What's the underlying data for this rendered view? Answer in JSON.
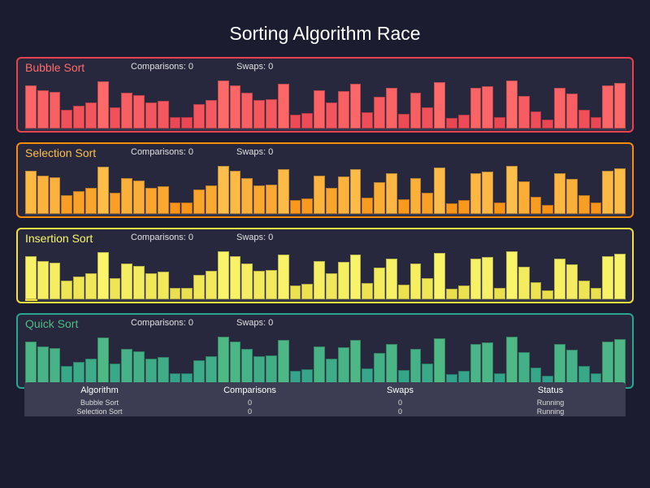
{
  "title": "Sorting Algorithm Race",
  "comparisons_label": "Comparisons: ",
  "swaps_label": "Swaps: ",
  "values": [
    88,
    78,
    75,
    39,
    46,
    53,
    96,
    43,
    73,
    68,
    53,
    57,
    23,
    23,
    50,
    59,
    98,
    88,
    74,
    58,
    60,
    91,
    28,
    31,
    79,
    53,
    76,
    92,
    34,
    65,
    84,
    30,
    73,
    43,
    95,
    21,
    28,
    84,
    87,
    23,
    98,
    67,
    35,
    18,
    83,
    72,
    39,
    23,
    88,
    93
  ],
  "algorithms": [
    {
      "name": "Bubble Sort",
      "comparisons": 0,
      "swaps": 0,
      "progress": 0,
      "border": "#e8414f",
      "light": "#ff6b6b",
      "dark": "#e53e4f",
      "label_color": "#ff6b6b"
    },
    {
      "name": "Selection Sort",
      "comparisons": 0,
      "swaps": 0,
      "progress": 0,
      "border": "#f78b0a",
      "light": "#fdbf4c",
      "dark": "#f7890a",
      "label_color": "#fdbf4c"
    },
    {
      "name": "Insertion Sort",
      "comparisons": 0,
      "swaps": 0,
      "progress": 2,
      "border": "#f0e040",
      "light": "#faf56c",
      "dark": "#e6da44",
      "label_color": "#faf56c"
    },
    {
      "name": "Quick Sort",
      "comparisons": 0,
      "swaps": 0,
      "progress": 0,
      "border": "#2aa58f",
      "light": "#50ba85",
      "dark": "#2a9c8c",
      "label_color": "#50ba85"
    }
  ],
  "table": {
    "headers": [
      "Algorithm",
      "Comparisons",
      "Swaps",
      "Status"
    ],
    "rows": [
      [
        "Bubble Sort",
        "0",
        "0",
        "Running"
      ],
      [
        "Selection Sort",
        "0",
        "0",
        "Running"
      ]
    ]
  }
}
